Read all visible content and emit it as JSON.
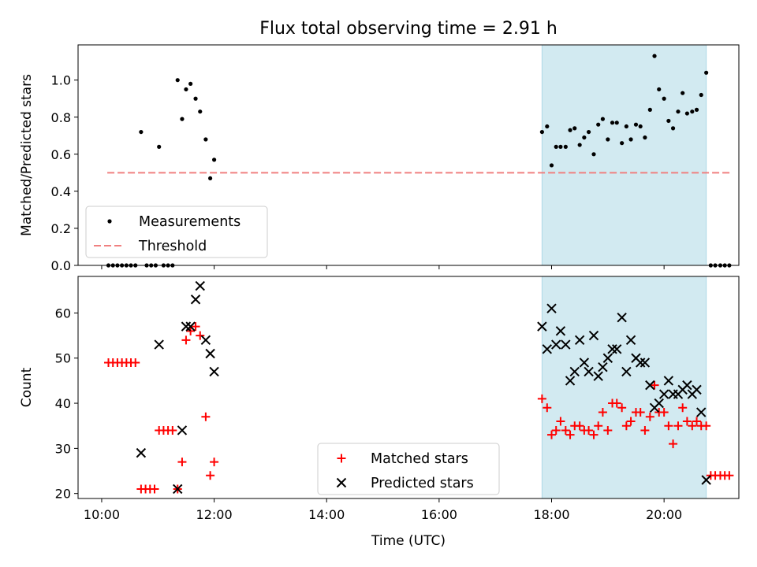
{
  "figure": {
    "title": "Flux total observing time = 2.91 h"
  },
  "chart_data": [
    {
      "type": "scatter",
      "panel": "top",
      "ylabel": "Matched/Predicted stars",
      "xlabel": "",
      "ylim": [
        0,
        1.19
      ],
      "yticks": [
        0.0,
        0.2,
        0.4,
        0.6,
        0.8,
        1.0
      ],
      "ytick_labels": [
        "0.0",
        "0.2",
        "0.4",
        "0.6",
        "0.8",
        "1.0"
      ],
      "xlim": [
        9.58,
        21.33
      ],
      "xticks": [
        10,
        12,
        14,
        16,
        18,
        20
      ],
      "xtick_labels": [],
      "shaded_interval": {
        "x0": 17.83,
        "x1": 20.75,
        "color": "#add8e6"
      },
      "legend_placement": "lower-left",
      "legend": [
        {
          "label": "Measurements",
          "marker": "dot",
          "color": "#000000"
        },
        {
          "label": "Threshold",
          "marker": "dashed-line",
          "color": "#f08080"
        }
      ],
      "threshold": {
        "y": 0.5,
        "x0": 10.1,
        "x1": 21.2,
        "color": "#f08080"
      },
      "series": [
        {
          "name": "Measurements",
          "color": "#000000",
          "points": [
            [
              10.12,
              0
            ],
            [
              10.2,
              0
            ],
            [
              10.28,
              0
            ],
            [
              10.36,
              0
            ],
            [
              10.44,
              0
            ],
            [
              10.52,
              0
            ],
            [
              10.6,
              0
            ],
            [
              10.7,
              0.72
            ],
            [
              10.8,
              0
            ],
            [
              10.88,
              0
            ],
            [
              10.96,
              0
            ],
            [
              11.02,
              0.64
            ],
            [
              11.1,
              0
            ],
            [
              11.18,
              0
            ],
            [
              11.26,
              0
            ],
            [
              11.35,
              1.0
            ],
            [
              11.43,
              0.79
            ],
            [
              11.5,
              0.95
            ],
            [
              11.58,
              0.98
            ],
            [
              11.67,
              0.9
            ],
            [
              11.75,
              0.83
            ],
            [
              11.85,
              0.68
            ],
            [
              11.93,
              0.47
            ],
            [
              12.0,
              0.57
            ],
            [
              17.83,
              0.72
            ],
            [
              17.92,
              0.75
            ],
            [
              18.0,
              0.54
            ],
            [
              18.08,
              0.64
            ],
            [
              18.16,
              0.64
            ],
            [
              18.25,
              0.64
            ],
            [
              18.33,
              0.73
            ],
            [
              18.41,
              0.74
            ],
            [
              18.5,
              0.65
            ],
            [
              18.58,
              0.69
            ],
            [
              18.66,
              0.72
            ],
            [
              18.75,
              0.6
            ],
            [
              18.83,
              0.76
            ],
            [
              18.91,
              0.79
            ],
            [
              19.0,
              0.68
            ],
            [
              19.08,
              0.77
            ],
            [
              19.16,
              0.77
            ],
            [
              19.25,
              0.66
            ],
            [
              19.33,
              0.75
            ],
            [
              19.41,
              0.68
            ],
            [
              19.5,
              0.76
            ],
            [
              19.58,
              0.75
            ],
            [
              19.66,
              0.69
            ],
            [
              19.75,
              0.84
            ],
            [
              19.83,
              1.13
            ],
            [
              19.91,
              0.95
            ],
            [
              20.0,
              0.9
            ],
            [
              20.08,
              0.78
            ],
            [
              20.16,
              0.74
            ],
            [
              20.25,
              0.83
            ],
            [
              20.33,
              0.93
            ],
            [
              20.41,
              0.82
            ],
            [
              20.5,
              0.83
            ],
            [
              20.58,
              0.84
            ],
            [
              20.66,
              0.92
            ],
            [
              20.75,
              1.04
            ],
            [
              20.83,
              0
            ],
            [
              20.91,
              0
            ],
            [
              21.0,
              0
            ],
            [
              21.08,
              0
            ],
            [
              21.16,
              0
            ]
          ]
        }
      ]
    },
    {
      "type": "scatter",
      "panel": "bottom",
      "ylabel": "Count",
      "xlabel": "Time (UTC)",
      "ylim": [
        18.9,
        68.1
      ],
      "yticks": [
        20,
        30,
        40,
        50,
        60
      ],
      "ytick_labels": [
        "20",
        "30",
        "40",
        "50",
        "60"
      ],
      "xlim": [
        9.58,
        21.33
      ],
      "xticks": [
        10,
        12,
        14,
        16,
        18,
        20
      ],
      "xtick_labels": [
        "10:00",
        "12:00",
        "14:00",
        "16:00",
        "18:00",
        "20:00"
      ],
      "shaded_interval": {
        "x0": 17.83,
        "x1": 20.75,
        "color": "#add8e6"
      },
      "legend_placement": "lower-center",
      "legend": [
        {
          "label": "Matched stars",
          "marker": "plus",
          "color": "#ff0000"
        },
        {
          "label": "Predicted stars",
          "marker": "x",
          "color": "#000000"
        }
      ],
      "series": [
        {
          "name": "Matched stars",
          "marker": "plus",
          "color": "#ff0000",
          "points": [
            [
              10.12,
              49
            ],
            [
              10.2,
              49
            ],
            [
              10.28,
              49
            ],
            [
              10.36,
              49
            ],
            [
              10.44,
              49
            ],
            [
              10.52,
              49
            ],
            [
              10.6,
              49
            ],
            [
              10.7,
              21
            ],
            [
              10.78,
              21
            ],
            [
              10.86,
              21
            ],
            [
              10.94,
              21
            ],
            [
              11.02,
              34
            ],
            [
              11.1,
              34
            ],
            [
              11.18,
              34
            ],
            [
              11.26,
              34
            ],
            [
              11.35,
              21
            ],
            [
              11.43,
              27
            ],
            [
              11.5,
              54
            ],
            [
              11.58,
              56
            ],
            [
              11.67,
              57
            ],
            [
              11.75,
              55
            ],
            [
              11.85,
              37
            ],
            [
              11.93,
              24
            ],
            [
              12.0,
              27
            ],
            [
              17.83,
              41
            ],
            [
              17.92,
              39
            ],
            [
              18.0,
              33
            ],
            [
              18.08,
              34
            ],
            [
              18.16,
              36
            ],
            [
              18.25,
              34
            ],
            [
              18.33,
              33
            ],
            [
              18.41,
              35
            ],
            [
              18.5,
              35
            ],
            [
              18.58,
              34
            ],
            [
              18.66,
              34
            ],
            [
              18.75,
              33
            ],
            [
              18.83,
              35
            ],
            [
              18.91,
              38
            ],
            [
              19.0,
              34
            ],
            [
              19.08,
              40
            ],
            [
              19.16,
              40
            ],
            [
              19.25,
              39
            ],
            [
              19.33,
              35
            ],
            [
              19.41,
              36
            ],
            [
              19.5,
              38
            ],
            [
              19.58,
              38
            ],
            [
              19.66,
              34
            ],
            [
              19.75,
              37
            ],
            [
              19.83,
              44
            ],
            [
              19.91,
              38
            ],
            [
              20.0,
              38
            ],
            [
              20.08,
              35
            ],
            [
              20.16,
              31
            ],
            [
              20.25,
              35
            ],
            [
              20.33,
              39
            ],
            [
              20.41,
              36
            ],
            [
              20.5,
              35
            ],
            [
              20.58,
              36
            ],
            [
              20.66,
              35
            ],
            [
              20.75,
              35
            ],
            [
              20.83,
              24
            ],
            [
              20.91,
              24
            ],
            [
              21.0,
              24
            ],
            [
              21.08,
              24
            ],
            [
              21.16,
              24
            ]
          ]
        },
        {
          "name": "Predicted stars",
          "marker": "x",
          "color": "#000000",
          "points": [
            [
              10.7,
              29
            ],
            [
              11.02,
              53
            ],
            [
              11.35,
              21
            ],
            [
              11.43,
              34
            ],
            [
              11.5,
              57
            ],
            [
              11.58,
              57
            ],
            [
              11.67,
              63
            ],
            [
              11.75,
              66
            ],
            [
              11.85,
              54
            ],
            [
              11.93,
              51
            ],
            [
              12.0,
              47
            ],
            [
              17.83,
              57
            ],
            [
              17.92,
              52
            ],
            [
              18.0,
              61
            ],
            [
              18.08,
              53
            ],
            [
              18.16,
              56
            ],
            [
              18.25,
              53
            ],
            [
              18.33,
              45
            ],
            [
              18.41,
              47
            ],
            [
              18.5,
              54
            ],
            [
              18.58,
              49
            ],
            [
              18.66,
              47
            ],
            [
              18.75,
              55
            ],
            [
              18.83,
              46
            ],
            [
              18.91,
              48
            ],
            [
              19.0,
              50
            ],
            [
              19.08,
              52
            ],
            [
              19.16,
              52
            ],
            [
              19.25,
              59
            ],
            [
              19.33,
              47
            ],
            [
              19.41,
              54
            ],
            [
              19.5,
              50
            ],
            [
              19.58,
              49
            ],
            [
              19.66,
              49
            ],
            [
              19.75,
              44
            ],
            [
              19.83,
              39
            ],
            [
              19.91,
              40
            ],
            [
              20.0,
              42
            ],
            [
              20.08,
              45
            ],
            [
              20.16,
              42
            ],
            [
              20.25,
              42
            ],
            [
              20.33,
              43
            ],
            [
              20.41,
              44
            ],
            [
              20.5,
              42
            ],
            [
              20.58,
              43
            ],
            [
              20.66,
              38
            ],
            [
              20.75,
              23
            ]
          ]
        }
      ]
    }
  ]
}
